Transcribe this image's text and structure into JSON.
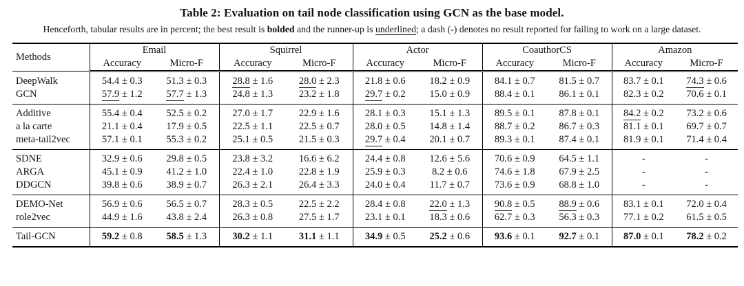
{
  "title": "Table 2: Evaluation on tail node classification using GCN as the base model.",
  "caption": {
    "part1": "Henceforth, tabular results are in percent; the best result is ",
    "bolded": "bolded",
    "part2": " and the runner-up is ",
    "underlined": "underlined",
    "part3": "; a dash (-) denotes no result reported for failing to work on a large dataset."
  },
  "table": {
    "methods_header": "Methods",
    "dataset_groups": [
      "Email",
      "Squirrel",
      "Actor",
      "CoauthorCS",
      "Amazon"
    ],
    "metric_headers": [
      "Accuracy",
      "Micro-F"
    ],
    "pm_sign": "±",
    "row_groups": [
      {
        "rows": [
          {
            "method": "DeepWalk",
            "cells": [
              {
                "v": "54.4",
                "pm": "0.3",
                "s": "n"
              },
              {
                "v": "51.3",
                "pm": "0.3",
                "s": "n"
              },
              {
                "v": "28.8",
                "pm": "1.6",
                "s": "u"
              },
              {
                "v": "28.0",
                "pm": "2.3",
                "s": "u"
              },
              {
                "v": "21.8",
                "pm": "0.6",
                "s": "n"
              },
              {
                "v": "18.2",
                "pm": "0.9",
                "s": "n"
              },
              {
                "v": "84.1",
                "pm": "0.7",
                "s": "n"
              },
              {
                "v": "81.5",
                "pm": "0.7",
                "s": "n"
              },
              {
                "v": "83.7",
                "pm": "0.1",
                "s": "n"
              },
              {
                "v": "74.3",
                "pm": "0.6",
                "s": "u"
              }
            ]
          },
          {
            "method": "GCN",
            "cells": [
              {
                "v": "57.9",
                "pm": "1.2",
                "s": "u"
              },
              {
                "v": "57.7",
                "pm": "1.3",
                "s": "u"
              },
              {
                "v": "24.8",
                "pm": "1.3",
                "s": "n"
              },
              {
                "v": "23.2",
                "pm": "1.8",
                "s": "n"
              },
              {
                "v": "29.7",
                "pm": "0.2",
                "s": "u"
              },
              {
                "v": "15.0",
                "pm": "0.9",
                "s": "n"
              },
              {
                "v": "88.4",
                "pm": "0.1",
                "s": "n"
              },
              {
                "v": "86.1",
                "pm": "0.1",
                "s": "n"
              },
              {
                "v": "82.3",
                "pm": "0.2",
                "s": "n"
              },
              {
                "v": "70.6",
                "pm": "0.1",
                "s": "n"
              }
            ]
          }
        ]
      },
      {
        "rows": [
          {
            "method": "Additive",
            "cells": [
              {
                "v": "55.4",
                "pm": "0.4",
                "s": "n"
              },
              {
                "v": "52.5",
                "pm": "0.2",
                "s": "n"
              },
              {
                "v": "27.0",
                "pm": "1.7",
                "s": "n"
              },
              {
                "v": "22.9",
                "pm": "1.6",
                "s": "n"
              },
              {
                "v": "28.1",
                "pm": "0.3",
                "s": "n"
              },
              {
                "v": "15.1",
                "pm": "1.3",
                "s": "n"
              },
              {
                "v": "89.5",
                "pm": "0.1",
                "s": "n"
              },
              {
                "v": "87.8",
                "pm": "0.1",
                "s": "n"
              },
              {
                "v": "84.2",
                "pm": "0.2",
                "s": "u"
              },
              {
                "v": "73.2",
                "pm": "0.6",
                "s": "n"
              }
            ]
          },
          {
            "method": "a la carte",
            "cells": [
              {
                "v": "21.1",
                "pm": "0.4",
                "s": "n"
              },
              {
                "v": "17.9",
                "pm": "0.5",
                "s": "n"
              },
              {
                "v": "22.5",
                "pm": "1.1",
                "s": "n"
              },
              {
                "v": "22.5",
                "pm": "0.7",
                "s": "n"
              },
              {
                "v": "28.0",
                "pm": "0.5",
                "s": "n"
              },
              {
                "v": "14.8",
                "pm": "1.4",
                "s": "n"
              },
              {
                "v": "88.7",
                "pm": "0.2",
                "s": "n"
              },
              {
                "v": "86.7",
                "pm": "0.3",
                "s": "n"
              },
              {
                "v": "81.1",
                "pm": "0.1",
                "s": "n"
              },
              {
                "v": "69.7",
                "pm": "0.7",
                "s": "n"
              }
            ]
          },
          {
            "method": "meta-tail2vec",
            "cells": [
              {
                "v": "57.1",
                "pm": "0.1",
                "s": "n"
              },
              {
                "v": "55.3",
                "pm": "0.2",
                "s": "n"
              },
              {
                "v": "25.1",
                "pm": "0.5",
                "s": "n"
              },
              {
                "v": "21.5",
                "pm": "0.3",
                "s": "n"
              },
              {
                "v": "29.7",
                "pm": "0.4",
                "s": "u"
              },
              {
                "v": "20.1",
                "pm": "0.7",
                "s": "n"
              },
              {
                "v": "89.3",
                "pm": "0.1",
                "s": "n"
              },
              {
                "v": "87.4",
                "pm": "0.1",
                "s": "n"
              },
              {
                "v": "81.9",
                "pm": "0.1",
                "s": "n"
              },
              {
                "v": "71.4",
                "pm": "0.4",
                "s": "n"
              }
            ]
          }
        ]
      },
      {
        "rows": [
          {
            "method": "SDNE",
            "cells": [
              {
                "v": "32.9",
                "pm": "0.6",
                "s": "n"
              },
              {
                "v": "29.8",
                "pm": "0.5",
                "s": "n"
              },
              {
                "v": "23.8",
                "pm": "3.2",
                "s": "n"
              },
              {
                "v": "16.6",
                "pm": "6.2",
                "s": "n"
              },
              {
                "v": "24.4",
                "pm": "0.8",
                "s": "n"
              },
              {
                "v": "12.6",
                "pm": "5.6",
                "s": "n"
              },
              {
                "v": "70.6",
                "pm": "0.9",
                "s": "n"
              },
              {
                "v": "64.5",
                "pm": "1.1",
                "s": "n"
              },
              {
                "v": "-",
                "pm": null,
                "s": "n"
              },
              {
                "v": "-",
                "pm": null,
                "s": "n"
              }
            ]
          },
          {
            "method": "ARGA",
            "cells": [
              {
                "v": "45.1",
                "pm": "0.9",
                "s": "n"
              },
              {
                "v": "41.2",
                "pm": "1.0",
                "s": "n"
              },
              {
                "v": "22.4",
                "pm": "1.0",
                "s": "n"
              },
              {
                "v": "22.8",
                "pm": "1.9",
                "s": "n"
              },
              {
                "v": "25.9",
                "pm": "0.3",
                "s": "n"
              },
              {
                "v": "8.2",
                "pm": "0.6",
                "s": "n"
              },
              {
                "v": "74.6",
                "pm": "1.8",
                "s": "n"
              },
              {
                "v": "67.9",
                "pm": "2.5",
                "s": "n"
              },
              {
                "v": "-",
                "pm": null,
                "s": "n"
              },
              {
                "v": "-",
                "pm": null,
                "s": "n"
              }
            ]
          },
          {
            "method": "DDGCN",
            "cells": [
              {
                "v": "39.8",
                "pm": "0.6",
                "s": "n"
              },
              {
                "v": "38.9",
                "pm": "0.7",
                "s": "n"
              },
              {
                "v": "26.3",
                "pm": "2.1",
                "s": "n"
              },
              {
                "v": "26.4",
                "pm": "3.3",
                "s": "n"
              },
              {
                "v": "24.0",
                "pm": "0.4",
                "s": "n"
              },
              {
                "v": "11.7",
                "pm": "0.7",
                "s": "n"
              },
              {
                "v": "73.6",
                "pm": "0.9",
                "s": "n"
              },
              {
                "v": "68.8",
                "pm": "1.0",
                "s": "n"
              },
              {
                "v": "-",
                "pm": null,
                "s": "n"
              },
              {
                "v": "-",
                "pm": null,
                "s": "n"
              }
            ]
          }
        ]
      },
      {
        "rows": [
          {
            "method": "DEMO-Net",
            "cells": [
              {
                "v": "56.9",
                "pm": "0.6",
                "s": "n"
              },
              {
                "v": "56.5",
                "pm": "0.7",
                "s": "n"
              },
              {
                "v": "28.3",
                "pm": "0.5",
                "s": "n"
              },
              {
                "v": "22.5",
                "pm": "2.2",
                "s": "n"
              },
              {
                "v": "28.4",
                "pm": "0.8",
                "s": "n"
              },
              {
                "v": "22.0",
                "pm": "1.3",
                "s": "u"
              },
              {
                "v": "90.8",
                "pm": "0.5",
                "s": "u"
              },
              {
                "v": "88.9",
                "pm": "0.6",
                "s": "u"
              },
              {
                "v": "83.1",
                "pm": "0.1",
                "s": "n"
              },
              {
                "v": "72.0",
                "pm": "0.4",
                "s": "n"
              }
            ]
          },
          {
            "method": "role2vec",
            "cells": [
              {
                "v": "44.9",
                "pm": "1.6",
                "s": "n"
              },
              {
                "v": "43.8",
                "pm": "2.4",
                "s": "n"
              },
              {
                "v": "26.3",
                "pm": "0.8",
                "s": "n"
              },
              {
                "v": "27.5",
                "pm": "1.7",
                "s": "n"
              },
              {
                "v": "23.1",
                "pm": "0.1",
                "s": "n"
              },
              {
                "v": "18.3",
                "pm": "0.6",
                "s": "n"
              },
              {
                "v": "62.7",
                "pm": "0.3",
                "s": "n"
              },
              {
                "v": "56.3",
                "pm": "0.3",
                "s": "n"
              },
              {
                "v": "77.1",
                "pm": "0.2",
                "s": "n"
              },
              {
                "v": "61.5",
                "pm": "0.5",
                "s": "n"
              }
            ]
          }
        ]
      },
      {
        "rows": [
          {
            "method": "Tail-GCN",
            "cells": [
              {
                "v": "59.2",
                "pm": "0.8",
                "s": "b"
              },
              {
                "v": "58.5",
                "pm": "1.3",
                "s": "b"
              },
              {
                "v": "30.2",
                "pm": "1.1",
                "s": "b"
              },
              {
                "v": "31.1",
                "pm": "1.1",
                "s": "b"
              },
              {
                "v": "34.9",
                "pm": "0.5",
                "s": "b"
              },
              {
                "v": "25.2",
                "pm": "0.6",
                "s": "b"
              },
              {
                "v": "93.6",
                "pm": "0.1",
                "s": "b"
              },
              {
                "v": "92.7",
                "pm": "0.1",
                "s": "b"
              },
              {
                "v": "87.0",
                "pm": "0.1",
                "s": "b"
              },
              {
                "v": "78.2",
                "pm": "0.2",
                "s": "b"
              }
            ]
          }
        ]
      }
    ]
  }
}
